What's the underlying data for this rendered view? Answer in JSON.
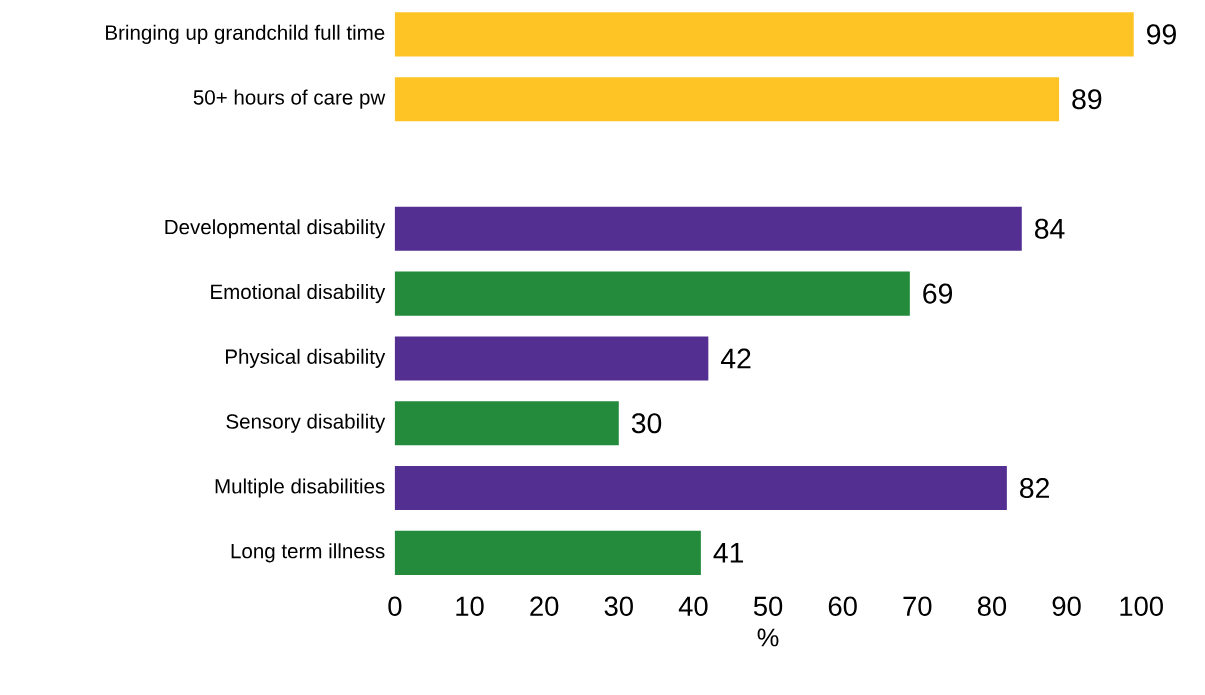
{
  "chart_data": {
    "type": "bar",
    "orientation": "horizontal",
    "xlabel": "%",
    "categories": [
      "Bringing up grandchild full time",
      "50+ hours of care pw",
      null,
      "Developmental disability",
      "Emotional disability",
      "Physical disability",
      "Sensory disability",
      "Multiple disabilities",
      "Long term illness"
    ],
    "values": [
      99,
      89,
      null,
      84,
      69,
      42,
      30,
      82,
      41
    ],
    "colors": [
      "#fec325",
      "#fec325",
      null,
      "#532f91",
      "#238b3b",
      "#532f91",
      "#238b3b",
      "#532f91",
      "#238b3b"
    ],
    "xlim": [
      0,
      100
    ],
    "xticks": [
      0,
      10,
      20,
      30,
      40,
      50,
      60,
      70,
      80,
      90,
      100
    ],
    "data_labels": true
  }
}
